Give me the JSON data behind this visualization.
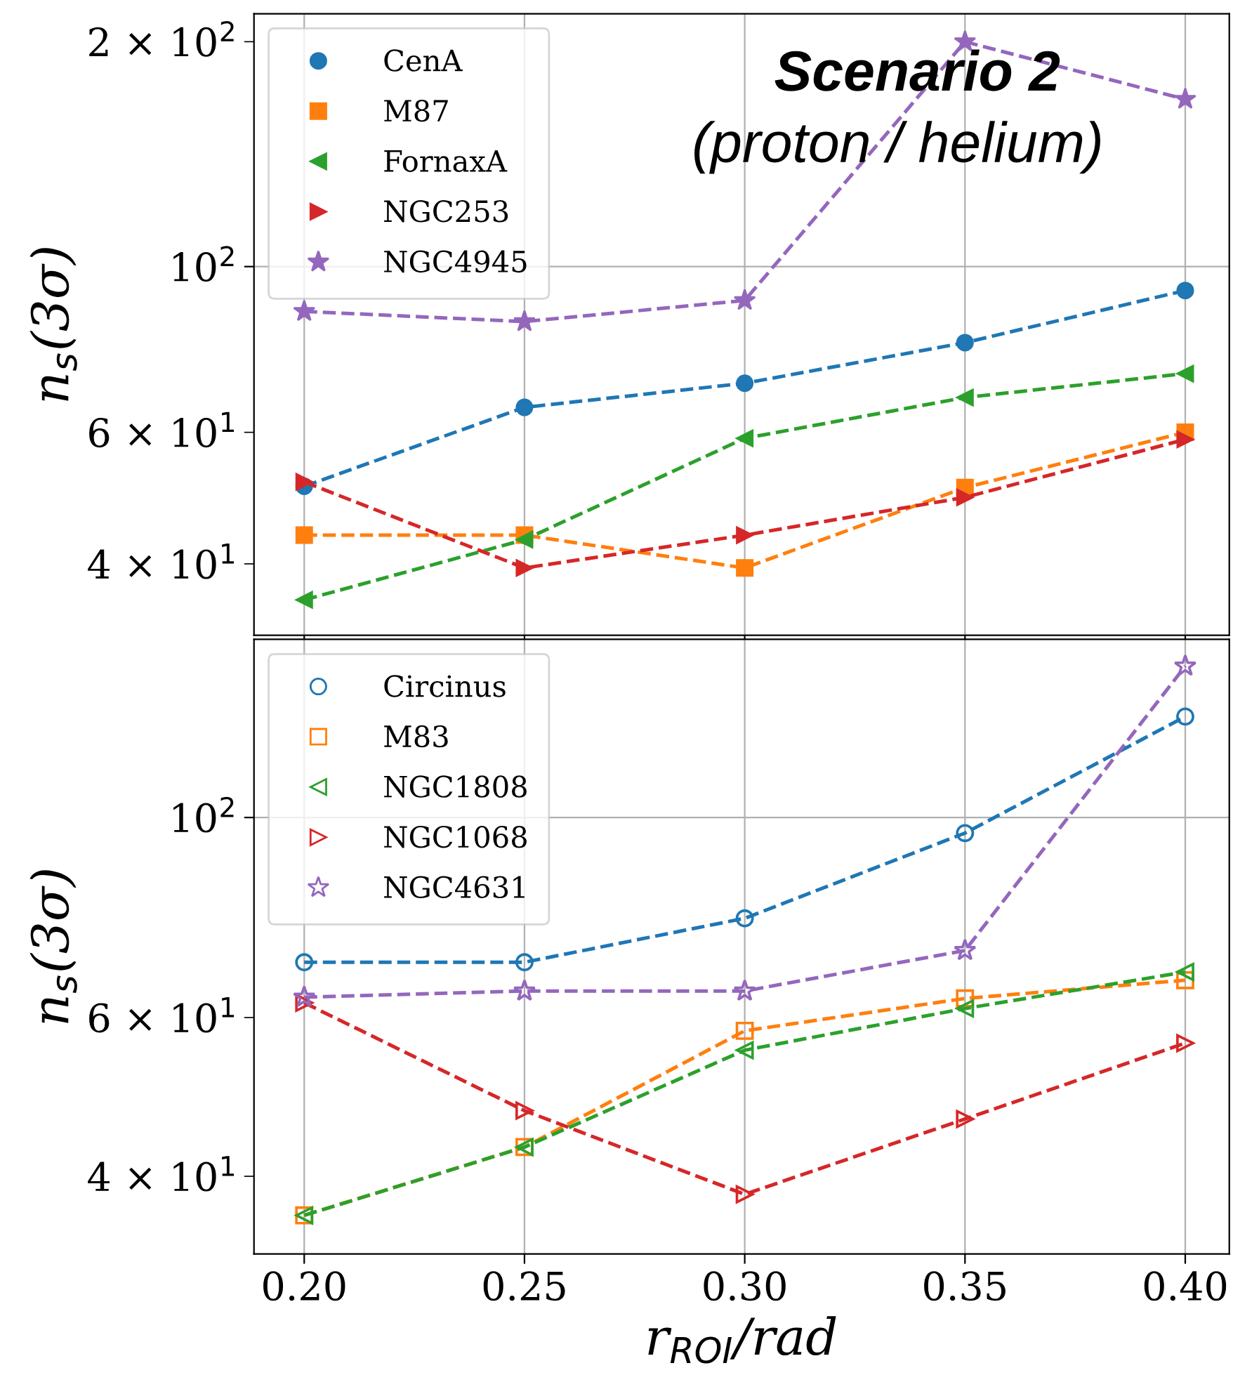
{
  "chart_data": [
    {
      "type": "line",
      "ylabel": "n$_{s}$(3σ)",
      "x": [
        0.2,
        0.25,
        0.3,
        0.35,
        0.4
      ],
      "log": "y",
      "xlim": [
        0.1886,
        0.41
      ],
      "ylim": [
        32.1,
        218
      ],
      "xticks": [
        0.2,
        0.25,
        0.3,
        0.35,
        0.4
      ],
      "yticks": [
        {
          "value": 40,
          "label": "4 × 10$^{1}$"
        },
        {
          "value": 60,
          "label": "6 × 10$^{1}$"
        },
        {
          "value": 100,
          "label": "10$^{2}$"
        },
        {
          "value": 200,
          "label": "2 × 10$^{2}$"
        }
      ],
      "tick_labels": "y",
      "grid": true,
      "legend": "top left",
      "line_style": "dashed",
      "annotations": [
        "Scenario 2",
        "(proton / helium)"
      ],
      "series": [
        {
          "name": "CenA",
          "color": "#1f77b4",
          "marker": "circle",
          "values": [
            50.8,
            64.8,
            69.8,
            79.1,
            92.9
          ]
        },
        {
          "name": "M87",
          "color": "#ff7f0e",
          "marker": "square",
          "values": [
            43.7,
            43.7,
            39.5,
            50.6,
            60.0
          ]
        },
        {
          "name": "FornaxA",
          "color": "#2ca02c",
          "marker": "triangle-left",
          "values": [
            35.8,
            43.1,
            58.9,
            66.8,
            71.9
          ]
        },
        {
          "name": "NGC253",
          "color": "#d62728",
          "marker": "triangle-right",
          "values": [
            51.5,
            39.5,
            43.7,
            49.1,
            58.7
          ]
        },
        {
          "name": "NGC4945",
          "color": "#9467bd",
          "marker": "star",
          "values": [
            87.1,
            84.4,
            90.1,
            200,
            167.5
          ]
        }
      ]
    },
    {
      "type": "line",
      "xlabel": "r$_{ROI}$/rad",
      "ylabel": "n$_{s}$(3σ)",
      "x": [
        0.2,
        0.25,
        0.3,
        0.35,
        0.4
      ],
      "log": "y",
      "xlim": [
        0.1886,
        0.41
      ],
      "ylim": [
        32.8,
        157.6
      ],
      "xticks": [
        {
          "value": 0.2,
          "label": "0.20"
        },
        0.25,
        {
          "value": 0.3,
          "label": "0.30"
        },
        0.35,
        {
          "value": 0.4,
          "label": "0.40"
        }
      ],
      "yticks": [
        {
          "value": 40,
          "label": "4 × 10$^{1}$"
        },
        {
          "value": 60,
          "label": "6 × 10$^{1}$"
        },
        {
          "value": 100,
          "label": "10$^{2}$"
        }
      ],
      "grid": true,
      "legend": "top left",
      "line_style": "dashed",
      "series": [
        {
          "name": "Circinus",
          "color": "#1f77b4",
          "marker": "circle-open",
          "values": [
            69.1,
            69.1,
            77.3,
            96.1,
            129.4
          ]
        },
        {
          "name": "M83",
          "color": "#ff7f0e",
          "marker": "square-open",
          "values": [
            36.2,
            43.1,
            58.0,
            63.0,
            66.0
          ]
        },
        {
          "name": "NGC1808",
          "color": "#2ca02c",
          "marker": "triangle-left-open",
          "values": [
            36.2,
            43.1,
            55.2,
            61.4,
            67.4
          ]
        },
        {
          "name": "NGC1068",
          "color": "#d62728",
          "marker": "triangle-right-open",
          "values": [
            62.3,
            47.3,
            38.2,
            46.3,
            56.2
          ]
        },
        {
          "name": "NGC4631",
          "color": "#9467bd",
          "marker": "star-open",
          "values": [
            63.2,
            64.2,
            64.2,
            71.2,
            147.2
          ]
        }
      ]
    }
  ]
}
